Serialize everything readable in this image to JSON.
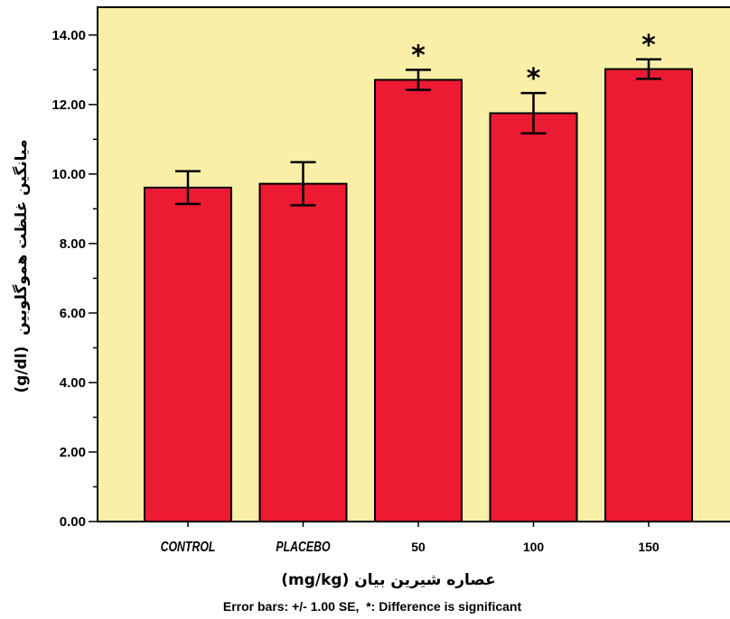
{
  "chart_data": {
    "type": "bar",
    "categories": [
      "CONTROL",
      "PLACEBO",
      "50",
      "100",
      "150"
    ],
    "values": [
      9.61,
      9.72,
      12.71,
      11.75,
      13.02
    ],
    "error_se": [
      0.47,
      0.62,
      0.29,
      0.58,
      0.28
    ],
    "significant": [
      false,
      false,
      true,
      true,
      true
    ],
    "significance_marker": "*",
    "ylim": [
      0,
      14.8
    ],
    "yticks": [
      "0.00",
      "2.00",
      "4.00",
      "6.00",
      "8.00",
      "10.00",
      "12.00",
      "14.00"
    ],
    "ylabel": "میانگین غلظت هموگلوبین  (g/dl)",
    "xlabel": "عصاره شیرین بیان (mg/kg)",
    "caption": "Error bars: +/- 1.00 SE,  *: Difference is significant",
    "grid": false
  },
  "colors": {
    "plot_background": "#F9EFA6",
    "bar_fill": "#EC1A32",
    "outline": "#000000"
  }
}
